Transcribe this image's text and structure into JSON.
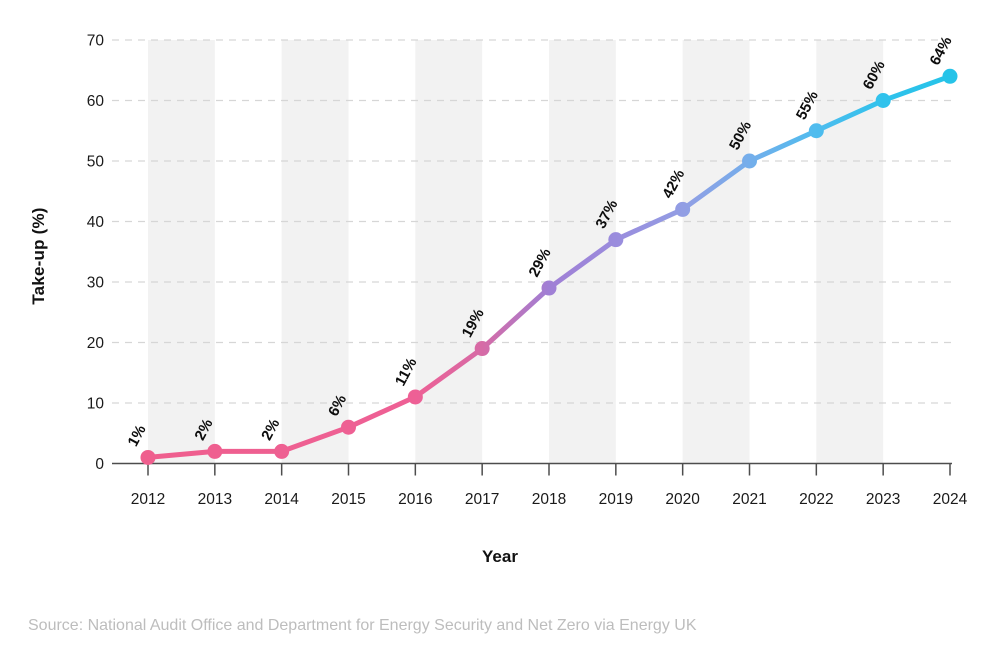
{
  "source_note": "Source: National Audit Office and Department for Energy Security and Net Zero via Energy UK",
  "chart_data": {
    "type": "line",
    "title": "",
    "xlabel": "Year",
    "ylabel": "Take-up (%)",
    "x": [
      2012,
      2013,
      2014,
      2015,
      2016,
      2017,
      2018,
      2019,
      2020,
      2021,
      2022,
      2023,
      2024
    ],
    "values": [
      1,
      2,
      2,
      6,
      11,
      19,
      29,
      37,
      42,
      50,
      55,
      60,
      64
    ],
    "point_labels": [
      "1%",
      "2%",
      "2%",
      "6%",
      "11%",
      "19%",
      "29%",
      "37%",
      "42%",
      "50%",
      "55%",
      "60%",
      "64%"
    ],
    "ylim": [
      0,
      70
    ],
    "yticks": [
      0,
      10,
      20,
      30,
      40,
      50,
      60,
      70
    ],
    "grid": "horizontal-dashed",
    "legend": "none",
    "background_bands": "alternating vertical bands between year pairs starting 2012-2013",
    "band_fill": "#f2f2f2",
    "line_gradient": [
      {
        "offset": 0.0,
        "color": "#ef5f8e"
      },
      {
        "offset": 0.333,
        "color": "#ee6095"
      },
      {
        "offset": 0.417,
        "color": "#d66ba6"
      },
      {
        "offset": 0.5,
        "color": "#a07fd5"
      },
      {
        "offset": 0.583,
        "color": "#9a8cdd"
      },
      {
        "offset": 0.667,
        "color": "#929ee4"
      },
      {
        "offset": 0.75,
        "color": "#74aeeb"
      },
      {
        "offset": 0.833,
        "color": "#4fbcee"
      },
      {
        "offset": 0.917,
        "color": "#30c2ec"
      },
      {
        "offset": 1.0,
        "color": "#26c3e8"
      }
    ],
    "colors": {
      "grid": "#d6d6d6",
      "axis": "#4d4d4d",
      "tick_label": "#1a1a1a",
      "data_label": "#0d0d0d"
    }
  }
}
